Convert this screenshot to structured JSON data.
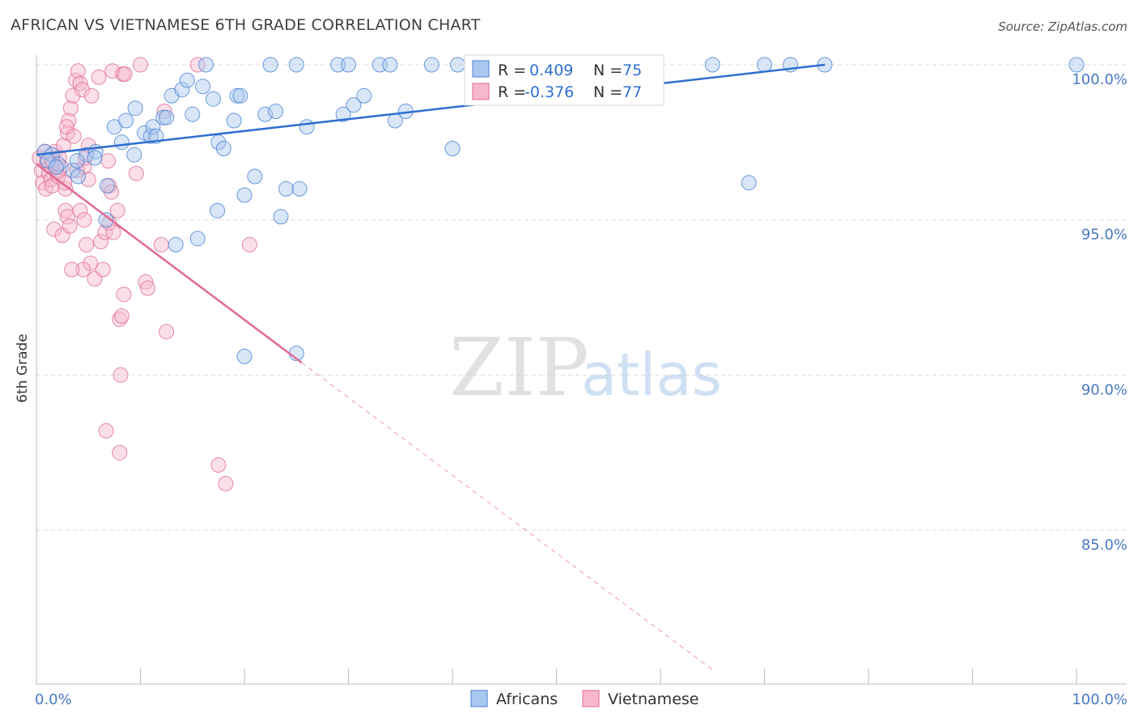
{
  "title": "AFRICAN VS VIETNAMESE 6TH GRADE CORRELATION CHART",
  "source": "Source: ZipAtlas.com",
  "watermark": {
    "zip": "ZIP",
    "atlas": "atlas"
  },
  "colors": {
    "blue": "#4a7fd0",
    "blue_fill": "#a8c8f0",
    "blue_line": "#2f6fcf",
    "pink": "#e06a93",
    "pink_fill": "#f7b8cd",
    "pink_line": "#e06a93",
    "tick_text": "#4a79c4",
    "grid": "#dddddd"
  },
  "legend_box": {
    "rows": [
      {
        "r_label": "R =",
        "r_value": "0.409",
        "n_label": "N =",
        "n_value": "75",
        "series": "blue"
      },
      {
        "r_label": "R =",
        "r_value": "-0.376",
        "n_label": "N =",
        "n_value": "77",
        "series": "pink"
      }
    ]
  },
  "bottom_legend": [
    {
      "label": "Africans",
      "series": "blue"
    },
    {
      "label": "Vietnamese",
      "series": "pink"
    }
  ],
  "chart_data": {
    "type": "scatter",
    "title": "AFRICAN VS VIETNAMESE 6TH GRADE CORRELATION CHART",
    "xlabel": "",
    "ylabel": "6th Grade",
    "xlim": [
      0,
      100
    ],
    "ylim": [
      80.5,
      100.4
    ],
    "x_tick_labels": [
      {
        "value": 0,
        "label": "0.0%"
      },
      {
        "value": 100,
        "label": "100.0%"
      }
    ],
    "y_tick_labels": [
      {
        "value": 100,
        "label": "100.0%"
      },
      {
        "value": 95,
        "label": "95.0%"
      },
      {
        "value": 90,
        "label": "90.0%"
      },
      {
        "value": 85,
        "label": "85.0%"
      }
    ],
    "x_minor_ticks": [
      0,
      10,
      20,
      30,
      40,
      50,
      60,
      70,
      80,
      90,
      100
    ],
    "grid": true,
    "series": [
      {
        "name": "Africans",
        "color": "#4a7fd0",
        "trend": {
          "x": [
            0,
            75.8
          ],
          "y": [
            97.1,
            100.0
          ]
        },
        "points": [
          [
            0.8,
            97.2
          ],
          [
            1.5,
            97.1
          ],
          [
            2.1,
            96.8
          ],
          [
            3.5,
            96.6
          ],
          [
            4.8,
            97.1
          ],
          [
            5.7,
            97.2
          ],
          [
            3.9,
            96.9
          ],
          [
            1.1,
            96.9
          ],
          [
            7.5,
            98.0
          ],
          [
            8.2,
            97.5
          ],
          [
            8.6,
            98.2
          ],
          [
            9.4,
            97.1
          ],
          [
            9.5,
            98.6
          ],
          [
            10.4,
            97.8
          ],
          [
            11.0,
            97.7
          ],
          [
            11.2,
            98.0
          ],
          [
            11.5,
            97.7
          ],
          [
            12.2,
            98.3
          ],
          [
            12.5,
            98.3
          ],
          [
            13.0,
            99.0
          ],
          [
            14.0,
            99.2
          ],
          [
            14.5,
            99.5
          ],
          [
            15.0,
            98.4
          ],
          [
            16.0,
            99.3
          ],
          [
            16.3,
            100.0
          ],
          [
            17.0,
            98.9
          ],
          [
            17.5,
            97.5
          ],
          [
            18.0,
            97.3
          ],
          [
            19.0,
            98.2
          ],
          [
            19.3,
            99.0
          ],
          [
            19.6,
            99.0
          ],
          [
            22.0,
            98.4
          ],
          [
            22.5,
            100.0
          ],
          [
            23.0,
            98.5
          ],
          [
            25.0,
            100.0
          ],
          [
            26.0,
            98.0
          ],
          [
            29.0,
            100.0
          ],
          [
            29.5,
            98.4
          ],
          [
            30.0,
            100.0
          ],
          [
            30.5,
            98.7
          ],
          [
            31.5,
            99.0
          ],
          [
            33.0,
            100.0
          ],
          [
            34.0,
            100.0
          ],
          [
            34.5,
            98.2
          ],
          [
            35.5,
            98.5
          ],
          [
            38.0,
            100.0
          ],
          [
            40.0,
            97.3
          ],
          [
            40.5,
            100.0
          ],
          [
            42.0,
            100.0
          ],
          [
            43.0,
            100.0
          ],
          [
            44.0,
            100.0
          ],
          [
            53.0,
            100.0
          ],
          [
            57.0,
            100.0
          ],
          [
            58.0,
            100.0
          ],
          [
            65.0,
            100.0
          ],
          [
            70.0,
            100.0
          ],
          [
            72.5,
            100.0
          ],
          [
            75.8,
            100.0
          ],
          [
            100.0,
            100.0
          ],
          [
            68.5,
            96.2
          ],
          [
            6.7,
            95.0
          ],
          [
            13.4,
            94.2
          ],
          [
            15.5,
            94.4
          ],
          [
            17.4,
            95.3
          ],
          [
            20.0,
            95.8
          ],
          [
            21.0,
            96.4
          ],
          [
            23.5,
            95.1
          ],
          [
            24.0,
            96.0
          ],
          [
            25.3,
            96.0
          ],
          [
            5.6,
            97.0
          ],
          [
            6.8,
            96.1
          ],
          [
            4.0,
            96.4
          ],
          [
            1.9,
            96.7
          ],
          [
            20.0,
            90.6
          ],
          [
            25.0,
            90.7
          ]
        ]
      },
      {
        "name": "Vietnamese",
        "color": "#e06a93",
        "trend": {
          "x": [
            0,
            25.5
          ],
          "y": [
            96.8,
            90.4
          ]
        },
        "trend_extension": {
          "x": [
            25.5,
            65
          ],
          "y": [
            90.4,
            80.5
          ]
        },
        "points": [
          [
            0.3,
            97.0
          ],
          [
            0.5,
            96.6
          ],
          [
            0.6,
            96.2
          ],
          [
            0.9,
            96.0
          ],
          [
            1.0,
            96.9
          ],
          [
            1.2,
            96.5
          ],
          [
            1.4,
            96.3
          ],
          [
            1.5,
            96.1
          ],
          [
            1.6,
            96.8
          ],
          [
            1.8,
            97.2
          ],
          [
            2.0,
            96.5
          ],
          [
            2.2,
            97.0
          ],
          [
            2.4,
            96.7
          ],
          [
            2.6,
            97.4
          ],
          [
            2.8,
            96.0
          ],
          [
            3.0,
            97.8
          ],
          [
            3.1,
            98.2
          ],
          [
            3.3,
            98.6
          ],
          [
            3.5,
            99.0
          ],
          [
            3.8,
            99.5
          ],
          [
            4.0,
            99.8
          ],
          [
            4.2,
            99.4
          ],
          [
            4.4,
            99.2
          ],
          [
            4.6,
            96.7
          ],
          [
            2.9,
            98.0
          ],
          [
            3.6,
            97.7
          ],
          [
            5.3,
            99.0
          ],
          [
            5.0,
            97.4
          ],
          [
            6.0,
            99.6
          ],
          [
            7.3,
            99.8
          ],
          [
            8.3,
            99.7
          ],
          [
            8.5,
            99.7
          ],
          [
            10.0,
            100.0
          ],
          [
            15.5,
            100.0
          ],
          [
            12.3,
            98.5
          ],
          [
            9.6,
            96.5
          ],
          [
            7.0,
            96.1
          ],
          [
            1.7,
            94.7
          ],
          [
            2.5,
            94.5
          ],
          [
            2.8,
            95.3
          ],
          [
            3.0,
            95.1
          ],
          [
            3.2,
            94.8
          ],
          [
            4.2,
            95.3
          ],
          [
            4.6,
            95.0
          ],
          [
            4.8,
            94.2
          ],
          [
            5.2,
            93.6
          ],
          [
            4.5,
            93.4
          ],
          [
            5.6,
            93.1
          ],
          [
            6.2,
            94.3
          ],
          [
            6.6,
            94.6
          ],
          [
            7.0,
            94.9
          ],
          [
            7.4,
            94.6
          ],
          [
            7.8,
            95.3
          ],
          [
            3.4,
            93.4
          ],
          [
            6.4,
            93.4
          ],
          [
            8.4,
            92.6
          ],
          [
            10.5,
            93.0
          ],
          [
            10.7,
            92.8
          ],
          [
            8.0,
            91.8
          ],
          [
            8.2,
            91.9
          ],
          [
            12.5,
            91.4
          ],
          [
            8.1,
            90.0
          ],
          [
            6.7,
            88.2
          ],
          [
            8.0,
            87.5
          ],
          [
            17.5,
            87.1
          ],
          [
            18.2,
            86.5
          ],
          [
            20.5,
            94.2
          ],
          [
            12.0,
            94.2
          ],
          [
            5.0,
            96.3
          ],
          [
            3.9,
            96.6
          ],
          [
            1.5,
            96.9
          ],
          [
            0.8,
            97.2
          ],
          [
            2.1,
            96.4
          ],
          [
            6.9,
            96.9
          ],
          [
            4.7,
            97.0
          ],
          [
            7.2,
            95.9
          ],
          [
            2.7,
            96.2
          ]
        ]
      }
    ]
  }
}
